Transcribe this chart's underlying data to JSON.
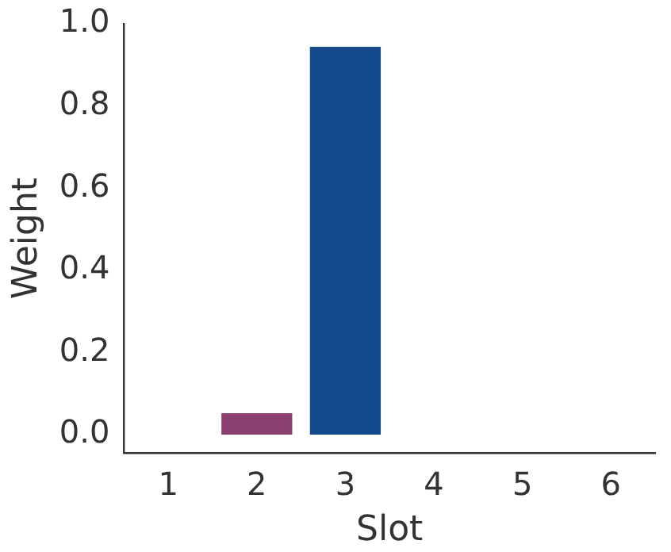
{
  "chart_data": {
    "type": "bar",
    "xlabel": "Slot",
    "ylabel": "Weight",
    "categories": [
      "1",
      "2",
      "3",
      "4",
      "5",
      "6"
    ],
    "values": [
      0,
      0.052,
      0.944,
      0,
      0,
      0
    ],
    "colors": [
      "#8a3f6e",
      "#8a3f6e",
      "#154b8c",
      "#154b8c",
      "#154b8c",
      "#154b8c"
    ],
    "ylim": [
      -0.045,
      1.0
    ],
    "yticks": [
      {
        "value": 0,
        "label": "0.0"
      },
      {
        "value": 0.2,
        "label": "0.2"
      },
      {
        "value": 0.4,
        "label": "0.4"
      },
      {
        "value": 0.6,
        "label": "0.6"
      },
      {
        "value": 0.8,
        "label": "0.8"
      },
      {
        "value": 1.0,
        "label": "1.0"
      }
    ],
    "grid": false,
    "legend": false
  }
}
